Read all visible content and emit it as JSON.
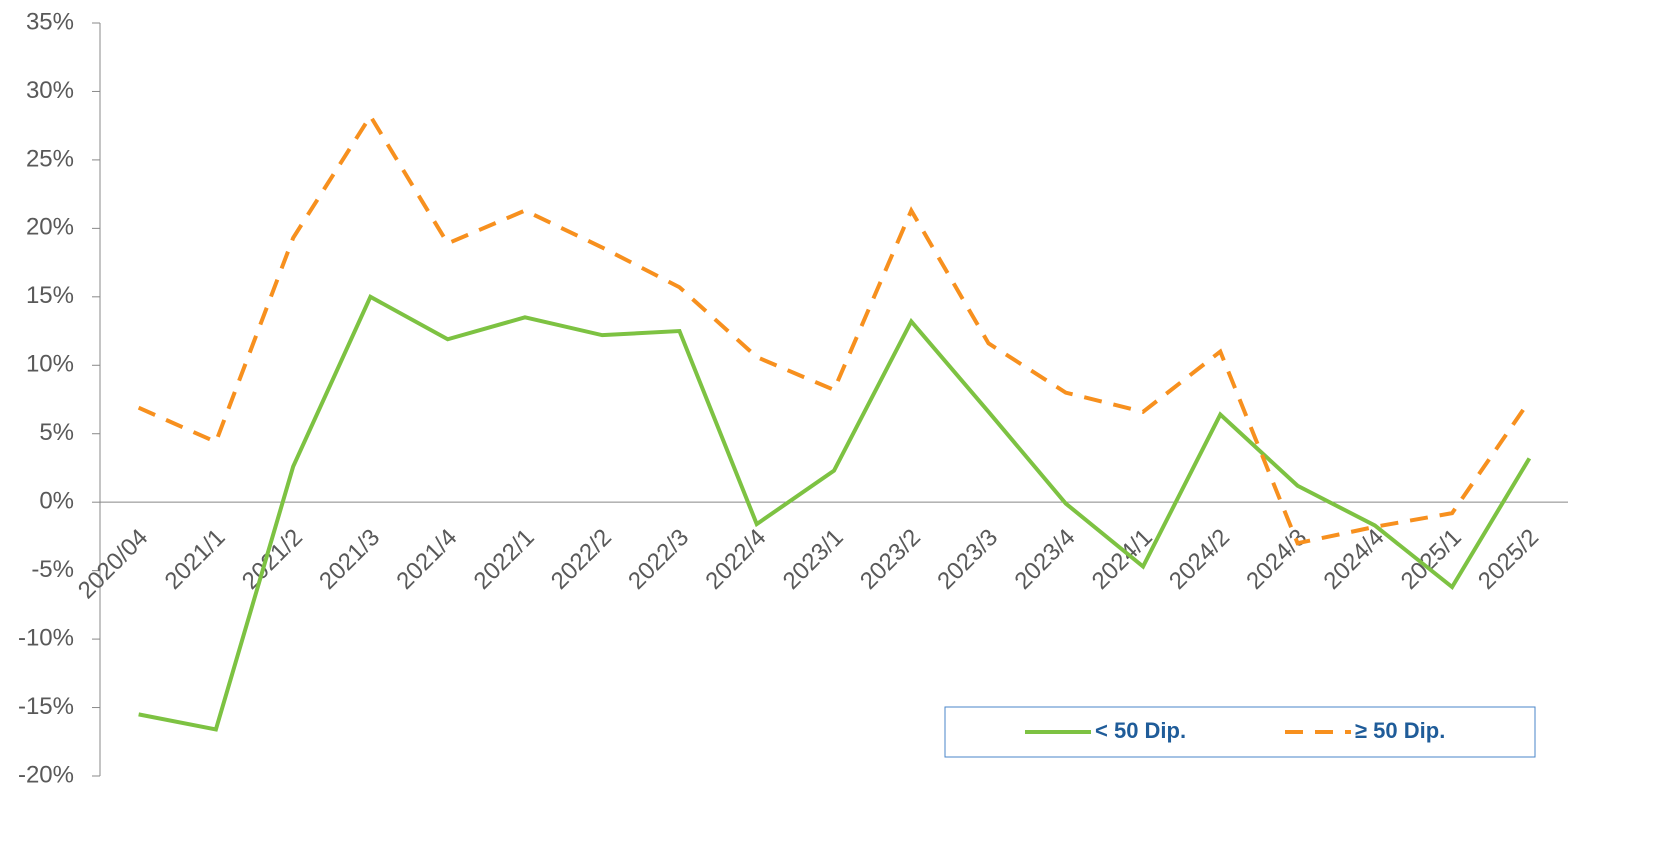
{
  "chart_data": {
    "type": "line",
    "categories": [
      "2020/04",
      "2021/1",
      "2021/2",
      "2021/3",
      "2021/4",
      "2022/1",
      "2022/2",
      "2022/3",
      "2022/4",
      "2023/1",
      "2023/2",
      "2023/3",
      "2023/4",
      "2024/1",
      "2024/2",
      "2024/3",
      "2024/4",
      "2025/1",
      "2025/2"
    ],
    "series": [
      {
        "name": "< 50 Dip.",
        "color": "#7dc242",
        "dash": "solid",
        "values": [
          -15.5,
          -16.6,
          2.6,
          15.0,
          11.9,
          13.5,
          12.2,
          12.5,
          -1.6,
          2.3,
          13.2,
          6.6,
          -0.1,
          -4.7,
          6.4,
          1.2,
          -1.7,
          -6.2,
          3.2
        ]
      },
      {
        "name": "≥ 50 Dip.",
        "color": "#f7901e",
        "dash": "dashed",
        "values": [
          6.9,
          4.4,
          19.3,
          28.2,
          18.9,
          21.3,
          18.6,
          15.7,
          10.6,
          8.2,
          21.3,
          11.6,
          8.0,
          6.6,
          11.0,
          -3.0,
          -1.8,
          -0.8,
          7.4
        ]
      }
    ],
    "ylim": [
      -20,
      35
    ],
    "yticks": [
      {
        "value": -20,
        "label": "-20%"
      },
      {
        "value": -15,
        "label": "-15%"
      },
      {
        "value": -10,
        "label": "-10%"
      },
      {
        "value": -5,
        "label": "-5%"
      },
      {
        "value": 0,
        "label": "0%"
      },
      {
        "value": 5,
        "label": "5%"
      },
      {
        "value": 10,
        "label": "10%"
      },
      {
        "value": 15,
        "label": "15%"
      },
      {
        "value": 20,
        "label": "20%"
      },
      {
        "value": 25,
        "label": "25%"
      },
      {
        "value": 30,
        "label": "30%"
      },
      {
        "value": 35,
        "label": "35%"
      }
    ],
    "grid": false,
    "legend": "bottom-right"
  }
}
